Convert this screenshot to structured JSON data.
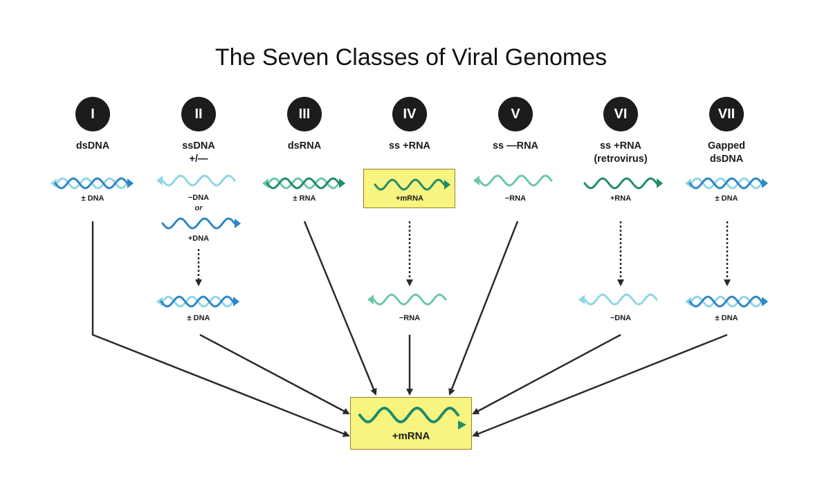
{
  "title": "The Seven Classes of Viral Genomes",
  "colors": {
    "dna_dark": "#2b86c5",
    "dna_light": "#8fd6e5",
    "rna_dark": "#1e8c6a",
    "rna_light": "#6cc6a8",
    "highlight": "#f8f480",
    "arrow": "#2a2a2a"
  },
  "classes": [
    {
      "numeral": "I",
      "title_lines": [
        "dsDNA",
        ""
      ],
      "genome_label": "± DNA",
      "intermediate_label": ""
    },
    {
      "numeral": "II",
      "title_lines": [
        "ssDNA",
        "+/—"
      ],
      "genome_label": "−DNA",
      "alt_label": "+DNA",
      "or_text": "or",
      "intermediate_label": "± DNA"
    },
    {
      "numeral": "III",
      "title_lines": [
        "dsRNA",
        ""
      ],
      "genome_label": "± RNA",
      "intermediate_label": ""
    },
    {
      "numeral": "IV",
      "title_lines": [
        "ss +RNA",
        ""
      ],
      "genome_label": "+mRNA",
      "intermediate_label": "−RNA"
    },
    {
      "numeral": "V",
      "title_lines": [
        "ss —RNA",
        ""
      ],
      "genome_label": "−RNA",
      "intermediate_label": ""
    },
    {
      "numeral": "VI",
      "title_lines": [
        "ss +RNA",
        "(retrovirus)"
      ],
      "genome_label": "+RNA",
      "intermediate_label": "−DNA"
    },
    {
      "numeral": "VII",
      "title_lines": [
        "Gapped",
        "dsDNA"
      ],
      "genome_label": "± DNA",
      "intermediate_label": "± DNA"
    }
  ],
  "target": {
    "label": "+mRNA"
  }
}
